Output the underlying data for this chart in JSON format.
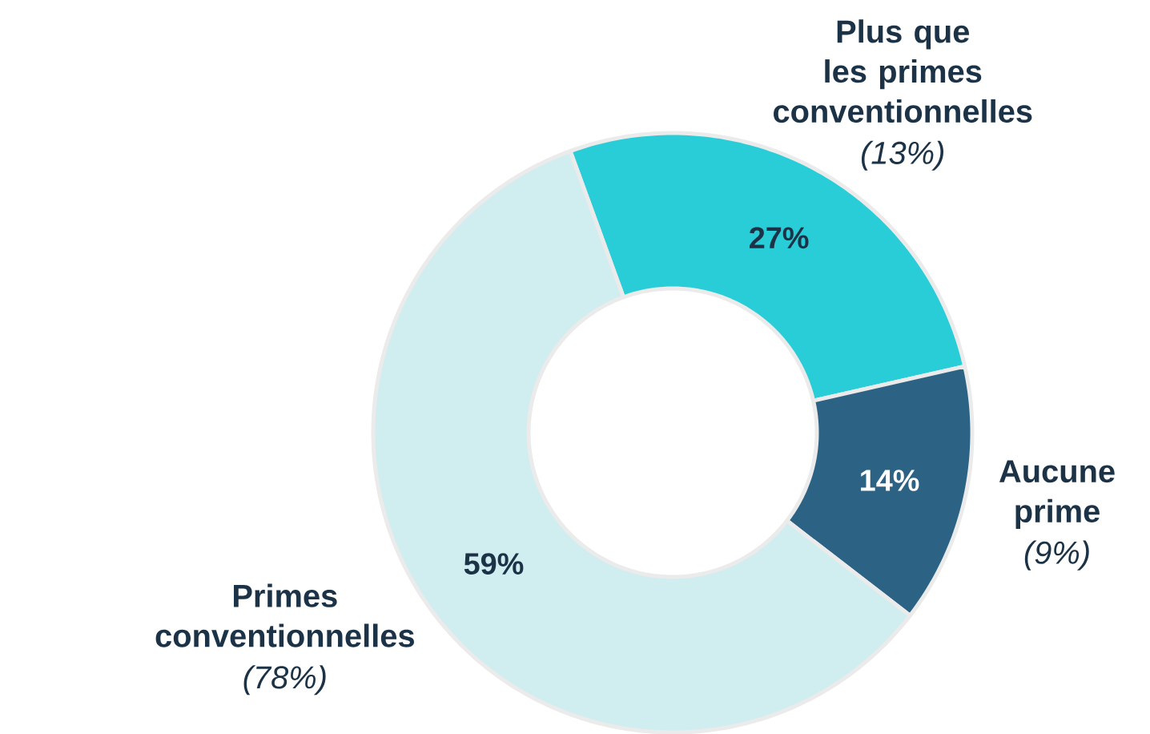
{
  "chart_data": {
    "type": "donut",
    "categories": [
      "Plus que les primes conventionnelles",
      "Aucune prime",
      "Primes conventionnelles"
    ],
    "values": [
      27,
      14,
      59
    ],
    "colors": [
      "#29cdd7",
      "#2c6384",
      "#d0edf0"
    ],
    "value_labels": [
      "27%",
      "14%",
      "59%"
    ],
    "annotations": [
      "(13%)",
      "(9%)",
      "(78%)"
    ]
  }
}
